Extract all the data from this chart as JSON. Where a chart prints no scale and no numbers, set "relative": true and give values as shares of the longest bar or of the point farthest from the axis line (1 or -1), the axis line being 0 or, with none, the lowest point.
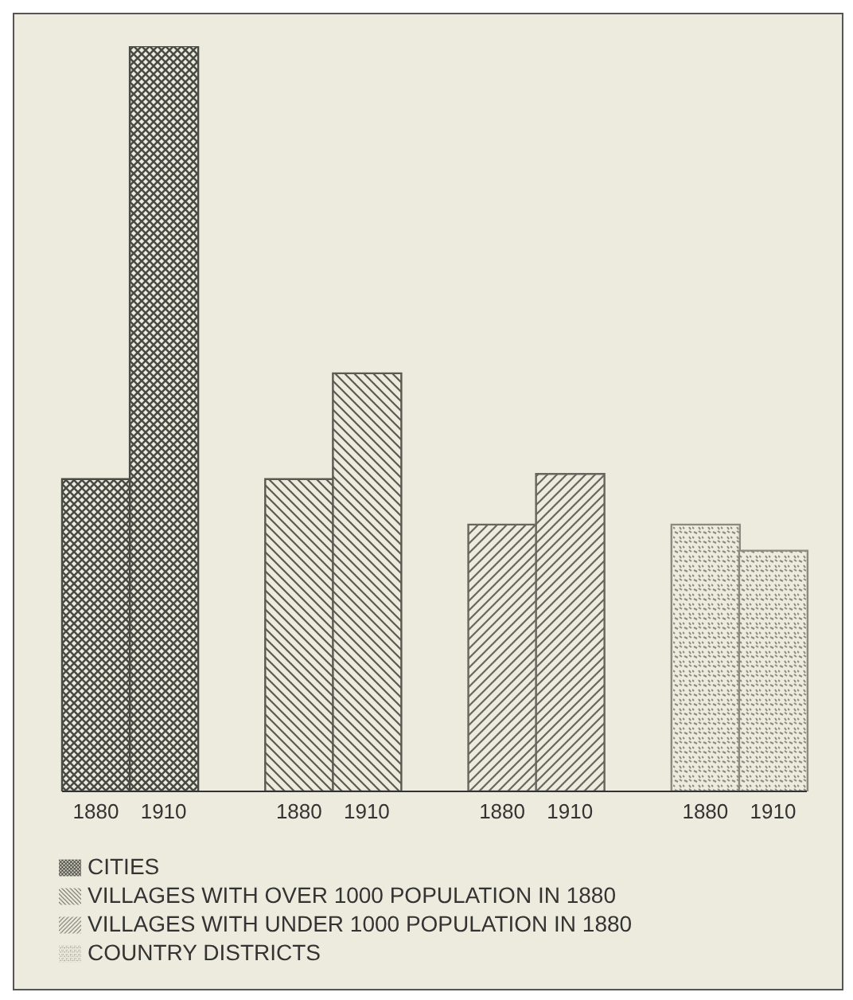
{
  "chart_data": {
    "type": "bar",
    "relative": true,
    "stacked": true,
    "legend": "bottom",
    "grid": false,
    "categories": [
      "1880",
      "1910",
      null,
      "1880",
      "1910",
      null,
      "1880",
      "1910",
      null,
      "1880",
      "1910"
    ],
    "series": [
      {
        "name": "CITIES",
        "color": "#4a4a44",
        "values": [
          0.419,
          1,
          null,
          null,
          null,
          null,
          null,
          null,
          null,
          null,
          null
        ]
      },
      {
        "name": "VILLAGES WITH OVER 1000 POPULATION IN 1880",
        "color": "#5a5a52",
        "values": [
          null,
          null,
          null,
          0.419,
          0.561,
          null,
          null,
          null,
          null,
          null,
          null
        ]
      },
      {
        "name": "VILLAGES WITH UNDER 1000 POPULATION IN 1880",
        "color": "#66665e",
        "values": [
          null,
          null,
          null,
          null,
          null,
          null,
          0.358,
          0.426,
          null,
          null,
          null
        ]
      },
      {
        "name": "COUNTRY DISTRICTS",
        "color": "#8a8a80",
        "values": [
          null,
          null,
          null,
          null,
          null,
          null,
          null,
          null,
          null,
          0.358,
          0.323
        ]
      }
    ]
  }
}
